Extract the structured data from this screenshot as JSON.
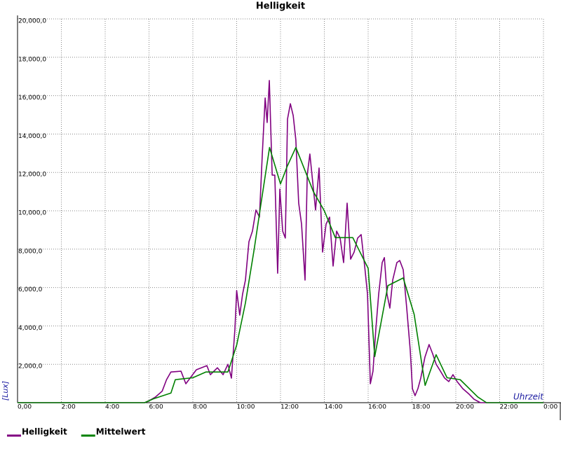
{
  "chart_data": {
    "type": "line",
    "title": "Helligkeit",
    "xlabel": "Uhrzeit",
    "ylabel": "[Lux]",
    "xlim": [
      0,
      24
    ],
    "ylim": [
      0,
      20000
    ],
    "grid": true,
    "legend": "bottom",
    "xticks": [
      {
        "value": 0,
        "label": "0,00"
      },
      {
        "value": 2,
        "label": "2:00"
      },
      {
        "value": 4,
        "label": "4:00"
      },
      {
        "value": 6,
        "label": "6:00"
      },
      {
        "value": 8,
        "label": "8:00"
      },
      {
        "value": 10,
        "label": "10:00"
      },
      {
        "value": 12,
        "label": "12:00"
      },
      {
        "value": 14,
        "label": "14:00"
      },
      {
        "value": 16,
        "label": "16:00"
      },
      {
        "value": 18,
        "label": "18:00"
      },
      {
        "value": 20,
        "label": "20:00"
      },
      {
        "value": 22,
        "label": "22:00"
      },
      {
        "value": 24,
        "label": "0:00"
      }
    ],
    "yticks": [
      {
        "value": 2000,
        "label": "2,000,0"
      },
      {
        "value": 4000,
        "label": "4,000,0"
      },
      {
        "value": 6000,
        "label": "6,000,0"
      },
      {
        "value": 8000,
        "label": "8,000,0"
      },
      {
        "value": 10000,
        "label": "10,000,0"
      },
      {
        "value": 12000,
        "label": "12,000,0"
      },
      {
        "value": 14000,
        "label": "14,000,0"
      },
      {
        "value": 16000,
        "label": "16,000,0"
      },
      {
        "value": 18000,
        "label": "18,000,0"
      },
      {
        "value": 20000,
        "label": "20,000,0"
      }
    ],
    "series": [
      {
        "name": "Helligkeit",
        "color": "#800080",
        "x": [
          0,
          5.8,
          6.0,
          6.3,
          6.6,
          6.8,
          7.0,
          7.46,
          7.68,
          8.16,
          8.64,
          8.8,
          9.12,
          9.38,
          9.6,
          9.76,
          9.92,
          10.0,
          10.14,
          10.27,
          10.4,
          10.56,
          10.72,
          10.88,
          11.04,
          11.17,
          11.3,
          11.39,
          11.49,
          11.62,
          11.74,
          11.87,
          11.97,
          12.1,
          12.22,
          12.32,
          12.45,
          12.58,
          12.7,
          12.83,
          12.96,
          13.12,
          13.22,
          13.34,
          13.47,
          13.6,
          13.76,
          13.92,
          14.08,
          14.24,
          14.4,
          14.56,
          14.72,
          14.88,
          15.04,
          15.2,
          15.36,
          15.52,
          15.68,
          15.84,
          15.97,
          16.1,
          16.22,
          16.35,
          16.48,
          16.64,
          16.74,
          16.86,
          16.99,
          17.12,
          17.31,
          17.44,
          17.6,
          17.76,
          17.92,
          18.02,
          18.14,
          18.27,
          18.4,
          18.59,
          18.78,
          18.94,
          19.1,
          19.3,
          19.49,
          19.68,
          19.87,
          20.06,
          20.32,
          20.58,
          20.83,
          21.12,
          24
        ],
        "values": [
          0,
          0,
          100,
          300,
          600,
          1200,
          1600,
          1640,
          985,
          1715,
          1930,
          1460,
          1820,
          1460,
          2000,
          1280,
          3830,
          5840,
          4560,
          5660,
          6390,
          8390,
          8940,
          10040,
          9670,
          12960,
          15880,
          14600,
          16790,
          11860,
          11860,
          6750,
          11130,
          8940,
          8580,
          14780,
          15580,
          14960,
          13690,
          10400,
          9310,
          6390,
          11860,
          12960,
          11500,
          10040,
          12230,
          7850,
          9310,
          9670,
          7120,
          8940,
          8580,
          7300,
          10400,
          7480,
          7850,
          8580,
          8760,
          7120,
          5660,
          985,
          1640,
          3830,
          5660,
          7300,
          7560,
          5660,
          4930,
          6390,
          7300,
          7410,
          6930,
          4930,
          2740,
          730,
          365,
          730,
          1280,
          2370,
          3030,
          2560,
          2010,
          1640,
          1280,
          1100,
          1460,
          1100,
          730,
          470,
          180,
          0,
          0
        ]
      },
      {
        "name": "Mittelwert",
        "color": "#008000",
        "x": [
          0,
          5.8,
          6.2,
          7.0,
          7.2,
          8.0,
          8.6,
          9.6,
          10.0,
          10.4,
          10.8,
          11.1,
          11.5,
          12.0,
          12.3,
          12.7,
          13.5,
          14.0,
          14.5,
          15.3,
          16.0,
          16.3,
          16.9,
          17.6,
          18.1,
          18.6,
          19.1,
          19.6,
          20.2,
          21.0,
          21.4,
          24
        ],
        "values": [
          0,
          0,
          200,
          500,
          1200,
          1300,
          1600,
          1600,
          3000,
          5200,
          8000,
          10300,
          13300,
          11400,
          12300,
          13300,
          11000,
          10000,
          8600,
          8600,
          7000,
          2400,
          6100,
          6500,
          4600,
          900,
          2500,
          1300,
          1200,
          300,
          0,
          0
        ]
      }
    ]
  }
}
